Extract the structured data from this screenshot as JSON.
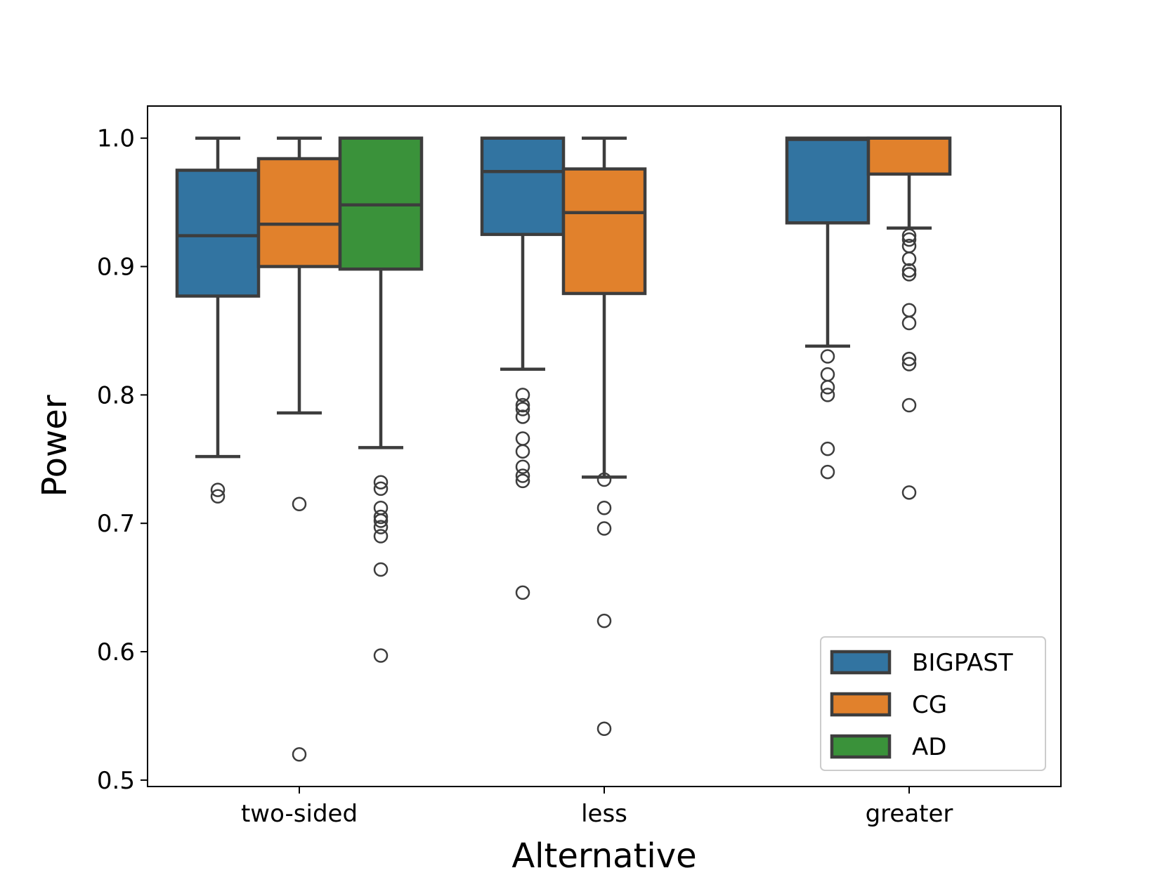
{
  "chart_data": {
    "type": "box",
    "xlabel": "Alternative",
    "ylabel": "Power",
    "categories": [
      "two-sided",
      "less",
      "greater"
    ],
    "ylim": [
      0.495,
      1.025
    ],
    "yticks": [
      "0.5",
      "0.6",
      "0.7",
      "0.8",
      "0.9",
      "1.0"
    ],
    "legend_position": "lower-right",
    "grid": false,
    "series": [
      {
        "name": "BIGPAST",
        "color": "#3274a1",
        "boxes": [
          {
            "category": "two-sided",
            "whislo": 0.752,
            "q1": 0.877,
            "med": 0.924,
            "q3": 0.975,
            "whishi": 1.0,
            "fliers": [
              0.726,
              0.721
            ]
          },
          {
            "category": "less",
            "whislo": 0.82,
            "q1": 0.925,
            "med": 0.974,
            "q3": 1.0,
            "whishi": 1.0,
            "fliers": [
              0.8,
              0.792,
              0.789,
              0.783,
              0.766,
              0.756,
              0.744,
              0.737,
              0.733,
              0.646
            ]
          },
          {
            "category": "greater",
            "whislo": 0.838,
            "q1": 0.934,
            "med": 0.999,
            "q3": 1.0,
            "whishi": 1.0,
            "fliers": [
              0.83,
              0.816,
              0.806,
              0.8,
              0.758,
              0.74
            ]
          }
        ]
      },
      {
        "name": "CG",
        "color": "#e1812c",
        "boxes": [
          {
            "category": "two-sided",
            "whislo": 0.786,
            "q1": 0.9,
            "med": 0.933,
            "q3": 0.984,
            "whishi": 1.0,
            "fliers": [
              0.715,
              0.52
            ]
          },
          {
            "category": "less",
            "whislo": 0.736,
            "q1": 0.879,
            "med": 0.942,
            "q3": 0.976,
            "whishi": 1.0,
            "fliers": [
              0.734,
              0.712,
              0.696,
              0.624,
              0.54
            ]
          },
          {
            "category": "greater",
            "whislo": 0.93,
            "q1": 0.972,
            "med": 1.0,
            "q3": 1.0,
            "whishi": 1.0,
            "fliers": [
              0.924,
              0.921,
              0.916,
              0.906,
              0.897,
              0.894,
              0.866,
              0.856,
              0.828,
              0.824,
              0.792,
              0.724
            ]
          }
        ]
      },
      {
        "name": "AD",
        "color": "#3a923a",
        "boxes": [
          {
            "category": "two-sided",
            "whislo": 0.759,
            "q1": 0.898,
            "med": 0.948,
            "q3": 1.0,
            "whishi": 1.0,
            "fliers": [
              0.732,
              0.727,
              0.712,
              0.705,
              0.702,
              0.697,
              0.69,
              0.664,
              0.597
            ]
          }
        ]
      }
    ]
  }
}
